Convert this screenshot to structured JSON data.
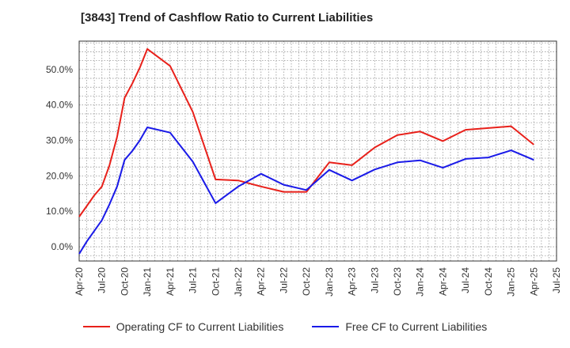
{
  "title": "[3843]  Trend of Cashflow Ratio to Current Liabilities",
  "chart_data": {
    "type": "line",
    "title": "[3843]  Trend of Cashflow Ratio to Current Liabilities",
    "xlabel": "",
    "ylabel": "",
    "grid": true,
    "legend_position": "bottom",
    "x_ticks": [
      "Apr-20",
      "Jul-20",
      "Oct-20",
      "Jan-21",
      "Apr-21",
      "Jul-21",
      "Oct-21",
      "Jan-22",
      "Apr-22",
      "Jul-22",
      "Oct-22",
      "Jan-23",
      "Apr-23",
      "Jul-23",
      "Oct-23",
      "Jan-24",
      "Apr-24",
      "Jul-24",
      "Oct-24",
      "Jan-25",
      "Apr-25",
      "Jul-25"
    ],
    "y_ticks": [
      "0.0%",
      "10.0%",
      "20.0%",
      "30.0%",
      "40.0%",
      "50.0%"
    ],
    "ylim": [
      -4,
      58
    ],
    "series": [
      {
        "name": "Operating CF to Current Liabilities",
        "color": "#e8201a",
        "points": [
          [
            "Apr-20",
            8.5
          ],
          [
            "May-20",
            11.5
          ],
          [
            "Jun-20",
            14.5
          ],
          [
            "Jul-20",
            17.0
          ],
          [
            "Aug-20",
            23.0
          ],
          [
            "Sep-20",
            31.0
          ],
          [
            "Oct-20",
            42.0
          ],
          [
            "Nov-20",
            46.0
          ],
          [
            "Dec-20",
            50.5
          ],
          [
            "Jan-21",
            55.8
          ],
          [
            "Apr-21",
            51.0
          ],
          [
            "Jul-21",
            38.0
          ],
          [
            "Oct-21",
            19.0
          ],
          [
            "Jan-22",
            18.7
          ],
          [
            "Apr-22",
            17.0
          ],
          [
            "Jul-22",
            15.5
          ],
          [
            "Oct-22",
            15.5
          ],
          [
            "Jan-23",
            23.8
          ],
          [
            "Apr-23",
            23.0
          ],
          [
            "Jul-23",
            28.0
          ],
          [
            "Oct-23",
            31.5
          ],
          [
            "Jan-24",
            32.5
          ],
          [
            "Apr-24",
            29.8
          ],
          [
            "Jul-24",
            33.0
          ],
          [
            "Oct-24",
            33.5
          ],
          [
            "Jan-25",
            34.0
          ],
          [
            "Apr-25",
            28.8
          ]
        ]
      },
      {
        "name": "Free CF to Current Liabilities",
        "color": "#1a1ae8",
        "points": [
          [
            "Apr-20",
            -2.0
          ],
          [
            "May-20",
            1.5
          ],
          [
            "Jun-20",
            4.5
          ],
          [
            "Jul-20",
            7.5
          ],
          [
            "Aug-20",
            12.0
          ],
          [
            "Sep-20",
            17.0
          ],
          [
            "Oct-20",
            24.5
          ],
          [
            "Nov-20",
            27.0
          ],
          [
            "Dec-20",
            30.0
          ],
          [
            "Jan-21",
            33.7
          ],
          [
            "Apr-21",
            32.2
          ],
          [
            "Jul-21",
            24.0
          ],
          [
            "Oct-21",
            12.3
          ],
          [
            "Jan-22",
            17.0
          ],
          [
            "Apr-22",
            20.6
          ],
          [
            "Jul-22",
            17.5
          ],
          [
            "Oct-22",
            16.0
          ],
          [
            "Jan-23",
            21.7
          ],
          [
            "Apr-23",
            18.7
          ],
          [
            "Jul-23",
            21.8
          ],
          [
            "Oct-23",
            23.8
          ],
          [
            "Jan-24",
            24.4
          ],
          [
            "Apr-24",
            22.3
          ],
          [
            "Jul-24",
            24.8
          ],
          [
            "Oct-24",
            25.2
          ],
          [
            "Jan-25",
            27.2
          ],
          [
            "Apr-25",
            24.5
          ]
        ]
      }
    ]
  }
}
